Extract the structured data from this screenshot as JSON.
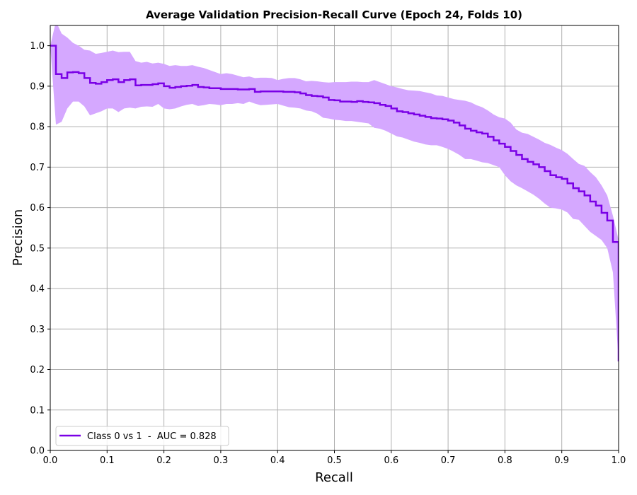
{
  "chart_data": {
    "type": "line",
    "title": "Average Validation Precision-Recall Curve (Epoch 24, Folds 10)",
    "xlabel": "Recall",
    "ylabel": "Precision",
    "xlim": [
      0.0,
      1.0
    ],
    "ylim": [
      0.0,
      1.05
    ],
    "xticks": [
      0.0,
      0.1,
      0.2,
      0.3,
      0.4,
      0.5,
      0.6,
      0.7,
      0.8,
      0.9,
      1.0
    ],
    "xtick_labels": [
      "0.0",
      "0.1",
      "0.2",
      "0.3",
      "0.4",
      "0.5",
      "0.6",
      "0.7",
      "0.8",
      "0.9",
      "1.0"
    ],
    "yticks": [
      0.0,
      0.1,
      0.2,
      0.3,
      0.4,
      0.5,
      0.6,
      0.7,
      0.8,
      0.9,
      1.0
    ],
    "ytick_labels": [
      "0.0",
      "0.1",
      "0.2",
      "0.3",
      "0.4",
      "0.5",
      "0.6",
      "0.7",
      "0.8",
      "0.9",
      "1.0"
    ],
    "grid": true,
    "legend_position": "lower-left",
    "series": [
      {
        "name": "Class 0 vs 1  -  AUC = 0.828",
        "color": "#7a00e6",
        "band_color": "#d5a8ff",
        "step": true,
        "x": [
          0.0,
          0.01,
          0.02,
          0.03,
          0.04,
          0.05,
          0.06,
          0.07,
          0.08,
          0.09,
          0.1,
          0.11,
          0.12,
          0.13,
          0.14,
          0.15,
          0.16,
          0.17,
          0.18,
          0.19,
          0.2,
          0.21,
          0.22,
          0.23,
          0.24,
          0.25,
          0.26,
          0.27,
          0.28,
          0.29,
          0.3,
          0.31,
          0.32,
          0.33,
          0.34,
          0.35,
          0.36,
          0.37,
          0.38,
          0.39,
          0.4,
          0.41,
          0.42,
          0.43,
          0.44,
          0.45,
          0.46,
          0.47,
          0.48,
          0.49,
          0.5,
          0.51,
          0.52,
          0.53,
          0.54,
          0.55,
          0.56,
          0.57,
          0.58,
          0.59,
          0.6,
          0.61,
          0.62,
          0.63,
          0.64,
          0.65,
          0.66,
          0.67,
          0.68,
          0.69,
          0.7,
          0.71,
          0.72,
          0.73,
          0.74,
          0.75,
          0.76,
          0.77,
          0.78,
          0.79,
          0.8,
          0.81,
          0.82,
          0.83,
          0.84,
          0.85,
          0.86,
          0.87,
          0.88,
          0.89,
          0.9,
          0.91,
          0.92,
          0.93,
          0.94,
          0.95,
          0.96,
          0.97,
          0.98,
          0.99,
          1.0
        ],
        "y": [
          1.0,
          0.93,
          0.92,
          0.934,
          0.935,
          0.932,
          0.92,
          0.908,
          0.906,
          0.91,
          0.915,
          0.917,
          0.91,
          0.915,
          0.917,
          0.902,
          0.903,
          0.903,
          0.905,
          0.907,
          0.9,
          0.896,
          0.898,
          0.9,
          0.901,
          0.903,
          0.898,
          0.897,
          0.895,
          0.895,
          0.893,
          0.893,
          0.893,
          0.892,
          0.892,
          0.893,
          0.886,
          0.887,
          0.887,
          0.887,
          0.887,
          0.886,
          0.886,
          0.885,
          0.882,
          0.878,
          0.876,
          0.875,
          0.872,
          0.866,
          0.865,
          0.862,
          0.862,
          0.861,
          0.863,
          0.861,
          0.86,
          0.858,
          0.854,
          0.851,
          0.845,
          0.838,
          0.836,
          0.833,
          0.83,
          0.827,
          0.824,
          0.821,
          0.82,
          0.818,
          0.815,
          0.81,
          0.803,
          0.795,
          0.79,
          0.786,
          0.783,
          0.775,
          0.766,
          0.758,
          0.75,
          0.74,
          0.73,
          0.72,
          0.713,
          0.707,
          0.7,
          0.69,
          0.68,
          0.675,
          0.671,
          0.66,
          0.648,
          0.64,
          0.63,
          0.615,
          0.605,
          0.587,
          0.568,
          0.515,
          0.22
        ],
        "upper": [
          1.0,
          1.06,
          1.03,
          1.02,
          1.007,
          1.0,
          0.99,
          0.988,
          0.98,
          0.982,
          0.985,
          0.988,
          0.984,
          0.985,
          0.985,
          0.962,
          0.958,
          0.96,
          0.956,
          0.958,
          0.955,
          0.95,
          0.952,
          0.95,
          0.95,
          0.952,
          0.948,
          0.945,
          0.94,
          0.935,
          0.93,
          0.932,
          0.93,
          0.926,
          0.922,
          0.924,
          0.92,
          0.921,
          0.921,
          0.92,
          0.915,
          0.918,
          0.92,
          0.92,
          0.917,
          0.912,
          0.913,
          0.912,
          0.91,
          0.909,
          0.91,
          0.91,
          0.91,
          0.911,
          0.911,
          0.91,
          0.91,
          0.915,
          0.91,
          0.905,
          0.9,
          0.897,
          0.893,
          0.89,
          0.889,
          0.888,
          0.885,
          0.882,
          0.877,
          0.876,
          0.872,
          0.868,
          0.866,
          0.864,
          0.86,
          0.853,
          0.848,
          0.84,
          0.83,
          0.823,
          0.82,
          0.81,
          0.793,
          0.785,
          0.782,
          0.775,
          0.768,
          0.76,
          0.755,
          0.748,
          0.742,
          0.733,
          0.72,
          0.708,
          0.703,
          0.688,
          0.675,
          0.655,
          0.63,
          0.58,
          0.52
        ],
        "lower": [
          1.0,
          0.805,
          0.812,
          0.845,
          0.862,
          0.862,
          0.85,
          0.828,
          0.833,
          0.838,
          0.845,
          0.845,
          0.836,
          0.845,
          0.847,
          0.845,
          0.849,
          0.85,
          0.849,
          0.856,
          0.845,
          0.843,
          0.845,
          0.85,
          0.854,
          0.856,
          0.851,
          0.853,
          0.856,
          0.855,
          0.853,
          0.856,
          0.856,
          0.858,
          0.856,
          0.862,
          0.857,
          0.853,
          0.854,
          0.855,
          0.856,
          0.852,
          0.848,
          0.847,
          0.845,
          0.84,
          0.838,
          0.832,
          0.822,
          0.82,
          0.817,
          0.816,
          0.814,
          0.814,
          0.812,
          0.81,
          0.808,
          0.797,
          0.795,
          0.79,
          0.783,
          0.776,
          0.773,
          0.768,
          0.763,
          0.76,
          0.756,
          0.754,
          0.754,
          0.75,
          0.745,
          0.738,
          0.73,
          0.72,
          0.72,
          0.716,
          0.712,
          0.71,
          0.705,
          0.7,
          0.68,
          0.665,
          0.655,
          0.648,
          0.64,
          0.632,
          0.622,
          0.61,
          0.6,
          0.598,
          0.595,
          0.588,
          0.572,
          0.57,
          0.555,
          0.54,
          0.53,
          0.52,
          0.5,
          0.44,
          0.22
        ]
      }
    ]
  }
}
